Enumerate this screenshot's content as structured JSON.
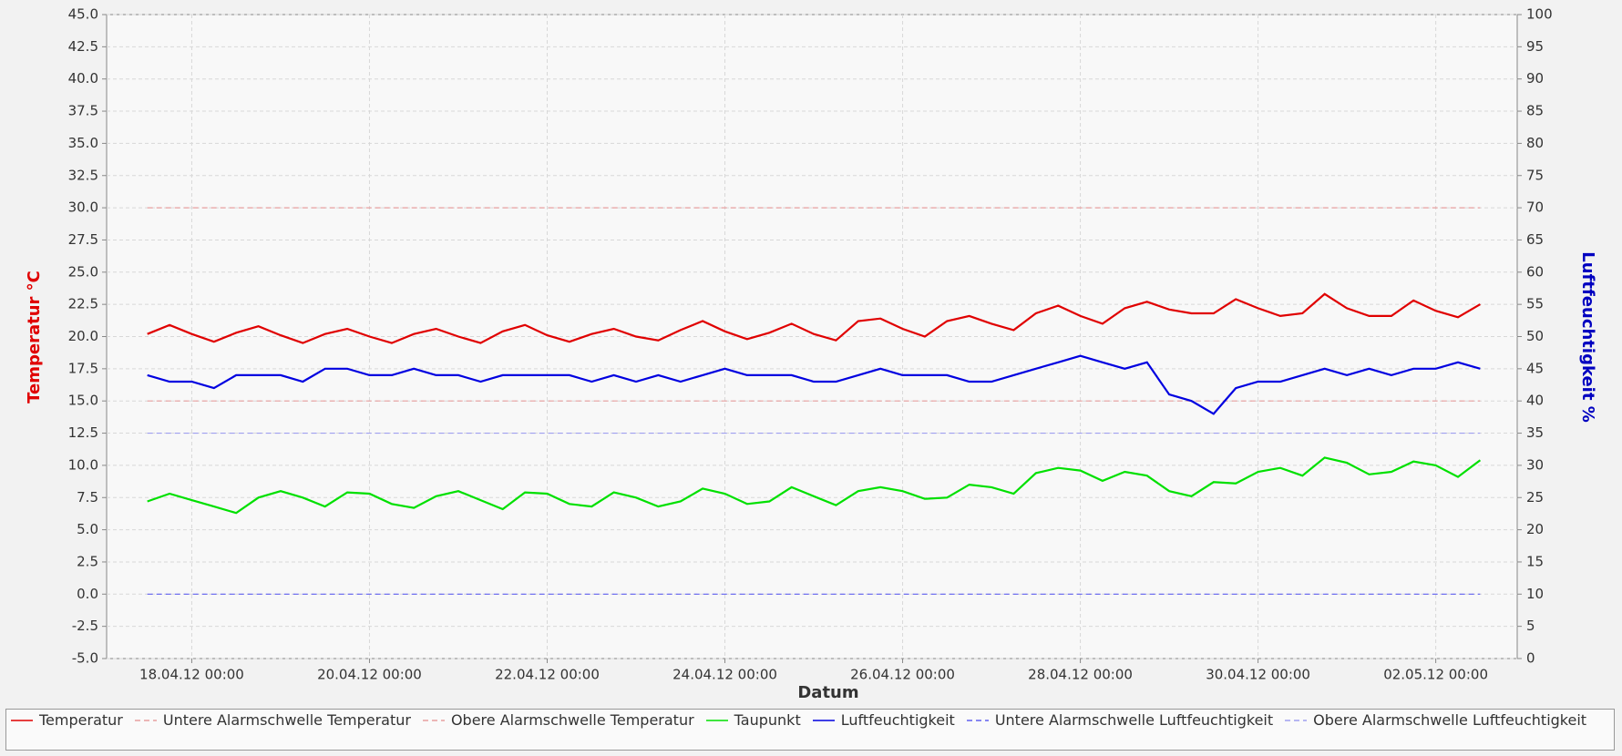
{
  "chart_data": {
    "type": "line",
    "x_label": "Datum",
    "y_label": "Temperatur °C",
    "y2_label": "Luftfeuchtigkeit %",
    "x": [
      "17.04.12 12:00",
      "17.04.12 18:00",
      "18.04.12 00:00",
      "18.04.12 06:00",
      "18.04.12 12:00",
      "18.04.12 18:00",
      "19.04.12 00:00",
      "19.04.12 06:00",
      "19.04.12 12:00",
      "19.04.12 18:00",
      "20.04.12 00:00",
      "20.04.12 06:00",
      "20.04.12 12:00",
      "20.04.12 18:00",
      "21.04.12 00:00",
      "21.04.12 06:00",
      "21.04.12 12:00",
      "21.04.12 18:00",
      "22.04.12 00:00",
      "22.04.12 06:00",
      "22.04.12 12:00",
      "22.04.12 18:00",
      "23.04.12 00:00",
      "23.04.12 06:00",
      "23.04.12 12:00",
      "23.04.12 18:00",
      "24.04.12 00:00",
      "24.04.12 06:00",
      "24.04.12 12:00",
      "24.04.12 18:00",
      "25.04.12 00:00",
      "25.04.12 06:00",
      "25.04.12 12:00",
      "25.04.12 18:00",
      "26.04.12 00:00",
      "26.04.12 06:00",
      "26.04.12 12:00",
      "26.04.12 18:00",
      "27.04.12 00:00",
      "27.04.12 06:00",
      "27.04.12 12:00",
      "27.04.12 18:00",
      "28.04.12 00:00",
      "28.04.12 06:00",
      "28.04.12 12:00",
      "28.04.12 18:00",
      "29.04.12 00:00",
      "29.04.12 06:00",
      "29.04.12 12:00",
      "29.04.12 18:00",
      "30.04.12 00:00",
      "30.04.12 06:00",
      "30.04.12 12:00",
      "30.04.12 18:00",
      "01.05.12 00:00",
      "01.05.12 06:00",
      "01.05.12 12:00",
      "01.05.12 18:00",
      "02.05.12 00:00",
      "02.05.12 06:00",
      "02.05.12 12:00"
    ],
    "xlim": [
      "17.04.12 01:00",
      "02.05.12 22:00"
    ],
    "xticks": [
      "18.04.12 00:00",
      "20.04.12 00:00",
      "22.04.12 00:00",
      "24.04.12 00:00",
      "26.04.12 00:00",
      "28.04.12 00:00",
      "30.04.12 00:00",
      "02.05.12 00:00"
    ],
    "ylim": [
      -5,
      45
    ],
    "yticks": [
      {
        "value": -5,
        "label": "-5.0"
      },
      {
        "value": -2.5,
        "label": "-2.5"
      },
      {
        "value": 0,
        "label": "0.0"
      },
      {
        "value": 2.5,
        "label": "2.5"
      },
      {
        "value": 5,
        "label": "5.0"
      },
      {
        "value": 7.5,
        "label": "7.5"
      },
      {
        "value": 10,
        "label": "10.0"
      },
      {
        "value": 12.5,
        "label": "12.5"
      },
      {
        "value": 15,
        "label": "15.0"
      },
      {
        "value": 17.5,
        "label": "17.5"
      },
      {
        "value": 20,
        "label": "20.0"
      },
      {
        "value": 22.5,
        "label": "22.5"
      },
      {
        "value": 25,
        "label": "25.0"
      },
      {
        "value": 27.5,
        "label": "27.5"
      },
      {
        "value": 30,
        "label": "30.0"
      },
      {
        "value": 32.5,
        "label": "32.5"
      },
      {
        "value": 35,
        "label": "35.0"
      },
      {
        "value": 37.5,
        "label": "37.5"
      },
      {
        "value": 40,
        "label": "40.0"
      },
      {
        "value": 42.5,
        "label": "42.5"
      },
      {
        "value": 45,
        "label": "45.0"
      }
    ],
    "y2lim": [
      0,
      100
    ],
    "y2ticks": [
      0,
      5,
      10,
      15,
      20,
      25,
      30,
      35,
      40,
      45,
      50,
      55,
      60,
      65,
      70,
      75,
      80,
      85,
      90,
      95,
      100
    ],
    "grid": true,
    "series": [
      {
        "name": "Temperatur",
        "color": "#e00000",
        "values": [
          20.2,
          20.9,
          20.2,
          19.6,
          20.3,
          20.8,
          20.1,
          19.5,
          20.2,
          20.6,
          20.0,
          19.5,
          20.2,
          20.6,
          20.0,
          19.5,
          20.4,
          20.9,
          20.1,
          19.6,
          20.2,
          20.6,
          20.0,
          19.7,
          20.5,
          21.2,
          20.4,
          19.8,
          20.3,
          21.0,
          20.2,
          19.7,
          21.2,
          21.4,
          20.6,
          20.0,
          21.2,
          21.6,
          21.0,
          20.5,
          21.8,
          22.4,
          21.6,
          21.0,
          22.2,
          22.7,
          22.1,
          21.8,
          21.8,
          22.9,
          22.2,
          21.6,
          21.8,
          23.3,
          22.2,
          21.6,
          21.6,
          22.8,
          22.0,
          21.5,
          22.5
        ]
      },
      {
        "name": "Untere Alarmschwelle Temperatur",
        "color": "#e8a0a0",
        "value": 15
      },
      {
        "name": "Obere Alarmschwelle Temperatur",
        "color": "#e8a0a0",
        "value": 30
      },
      {
        "name": "Taupunkt",
        "color": "#00e000",
        "values": [
          7.2,
          7.8,
          7.3,
          6.8,
          6.3,
          7.5,
          8.0,
          7.5,
          6.8,
          7.9,
          7.8,
          7.0,
          6.7,
          7.6,
          8.0,
          7.3,
          6.6,
          7.9,
          7.8,
          7.0,
          6.8,
          7.9,
          7.5,
          6.8,
          7.2,
          8.2,
          7.8,
          7.0,
          7.2,
          8.3,
          7.6,
          6.9,
          8.0,
          8.3,
          8.0,
          7.4,
          7.5,
          8.5,
          8.3,
          7.8,
          9.4,
          9.8,
          9.6,
          8.8,
          9.5,
          9.2,
          8.0,
          7.6,
          8.7,
          8.6,
          9.5,
          9.8,
          9.2,
          10.6,
          10.2,
          9.3,
          9.5,
          10.3,
          10.0,
          9.1,
          10.4
        ]
      },
      {
        "name": "Luftfeuchtigkeit",
        "color": "#0000e0",
        "axis": "y2",
        "values": [
          44,
          43,
          43,
          42,
          44,
          44,
          44,
          43,
          45,
          45,
          44,
          44,
          45,
          44,
          44,
          43,
          44,
          44,
          44,
          44,
          43,
          44,
          43,
          44,
          43,
          44,
          45,
          44,
          44,
          44,
          43,
          43,
          44,
          45,
          44,
          44,
          44,
          43,
          43,
          44,
          45,
          46,
          47,
          46,
          45,
          46,
          41,
          40,
          38,
          42,
          43,
          43,
          44,
          45,
          44,
          45,
          44,
          45,
          45,
          46,
          45
        ]
      },
      {
        "name": "Untere Alarmschwelle Luftfeuchtigkeit",
        "color": "#6060f0",
        "axis": "y2",
        "value": 10
      },
      {
        "name": "Obere Alarmschwelle Luftfeuchtigkeit",
        "color": "#a0a0f0",
        "axis": "y2",
        "value": 35
      }
    ]
  }
}
